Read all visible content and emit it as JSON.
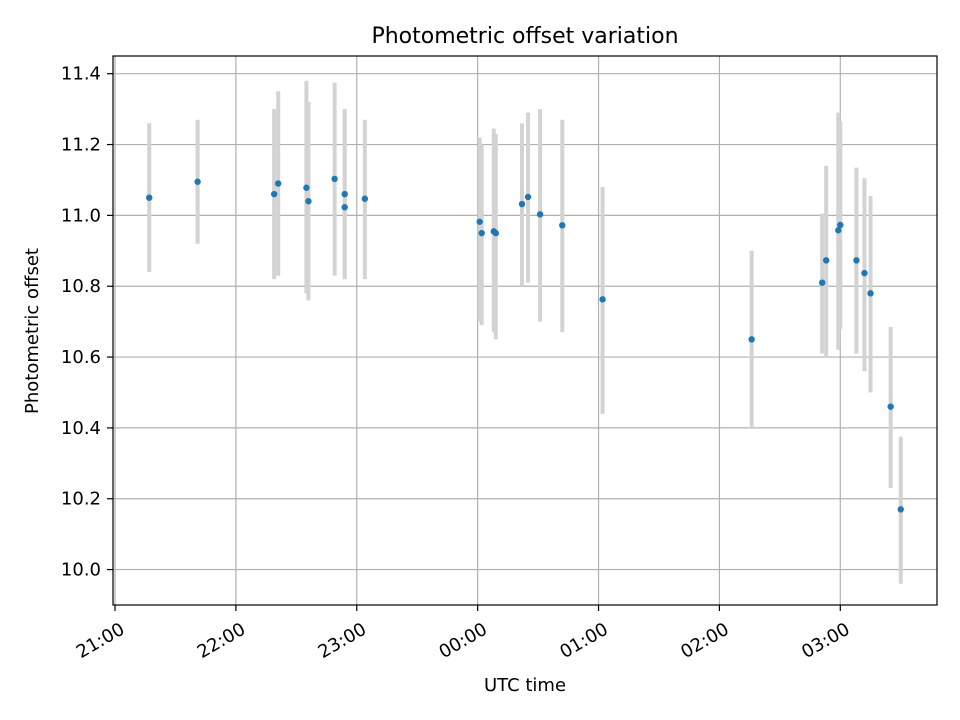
{
  "chart_data": {
    "type": "scatter",
    "title": "Photometric offset variation",
    "xlabel": "UTC time",
    "ylabel": "Photometric offset",
    "x_axis": {
      "kind": "time",
      "range": [
        "20:59",
        "03:48"
      ],
      "ticks": [
        "21:00",
        "22:00",
        "23:00",
        "00:00",
        "01:00",
        "02:00",
        "03:00"
      ]
    },
    "y_axis": {
      "range": [
        9.9,
        11.45
      ],
      "ticks": [
        "10.0",
        "10.2",
        "10.4",
        "10.6",
        "10.8",
        "11.0",
        "11.2",
        "11.4"
      ]
    },
    "grid": true,
    "marker_color": "#1f77b4",
    "errorbar_color": "#d3d3d3",
    "points": [
      {
        "t": "21:17",
        "y": 11.05,
        "lo": 10.84,
        "hi": 11.26
      },
      {
        "t": "21:41",
        "y": 11.095,
        "lo": 10.92,
        "hi": 11.27
      },
      {
        "t": "22:19",
        "y": 11.06,
        "lo": 10.82,
        "hi": 11.3
      },
      {
        "t": "22:21",
        "y": 11.09,
        "lo": 10.83,
        "hi": 11.35
      },
      {
        "t": "22:35",
        "y": 11.078,
        "lo": 10.78,
        "hi": 11.38
      },
      {
        "t": "22:36",
        "y": 11.04,
        "lo": 10.76,
        "hi": 11.32
      },
      {
        "t": "22:49",
        "y": 11.103,
        "lo": 10.83,
        "hi": 11.375
      },
      {
        "t": "22:54",
        "y": 11.06,
        "lo": 10.82,
        "hi": 11.3
      },
      {
        "t": "22:54",
        "y": 11.023,
        "lo": 10.82,
        "hi": 11.3
      },
      {
        "t": "23:04",
        "y": 11.047,
        "lo": 10.82,
        "hi": 11.27
      },
      {
        "t": "00:01",
        "y": 10.982,
        "lo": 10.7,
        "hi": 11.22
      },
      {
        "t": "00:02",
        "y": 10.95,
        "lo": 10.69,
        "hi": 11.2
      },
      {
        "t": "00:08",
        "y": 10.955,
        "lo": 10.67,
        "hi": 11.245
      },
      {
        "t": "00:09",
        "y": 10.95,
        "lo": 10.65,
        "hi": 11.23
      },
      {
        "t": "00:22",
        "y": 11.032,
        "lo": 10.8,
        "hi": 11.26
      },
      {
        "t": "00:25",
        "y": 11.052,
        "lo": 10.81,
        "hi": 11.29
      },
      {
        "t": "00:31",
        "y": 11.003,
        "lo": 10.7,
        "hi": 11.3
      },
      {
        "t": "00:42",
        "y": 10.972,
        "lo": 10.67,
        "hi": 11.27
      },
      {
        "t": "01:02",
        "y": 10.763,
        "lo": 10.44,
        "hi": 11.08
      },
      {
        "t": "02:16",
        "y": 10.65,
        "lo": 10.4,
        "hi": 10.9
      },
      {
        "t": "02:51",
        "y": 10.81,
        "lo": 10.61,
        "hi": 11.005
      },
      {
        "t": "02:53",
        "y": 10.873,
        "lo": 10.6,
        "hi": 11.14
      },
      {
        "t": "02:59",
        "y": 10.958,
        "lo": 10.62,
        "hi": 11.29
      },
      {
        "t": "03:00",
        "y": 10.973,
        "lo": 10.68,
        "hi": 11.265
      },
      {
        "t": "03:08",
        "y": 10.873,
        "lo": 10.61,
        "hi": 11.135
      },
      {
        "t": "03:12",
        "y": 10.837,
        "lo": 10.56,
        "hi": 11.105
      },
      {
        "t": "03:15",
        "y": 10.78,
        "lo": 10.5,
        "hi": 11.055
      },
      {
        "t": "03:25",
        "y": 10.46,
        "lo": 10.23,
        "hi": 10.685
      },
      {
        "t": "03:30",
        "y": 10.17,
        "lo": 9.96,
        "hi": 10.375
      }
    ]
  }
}
